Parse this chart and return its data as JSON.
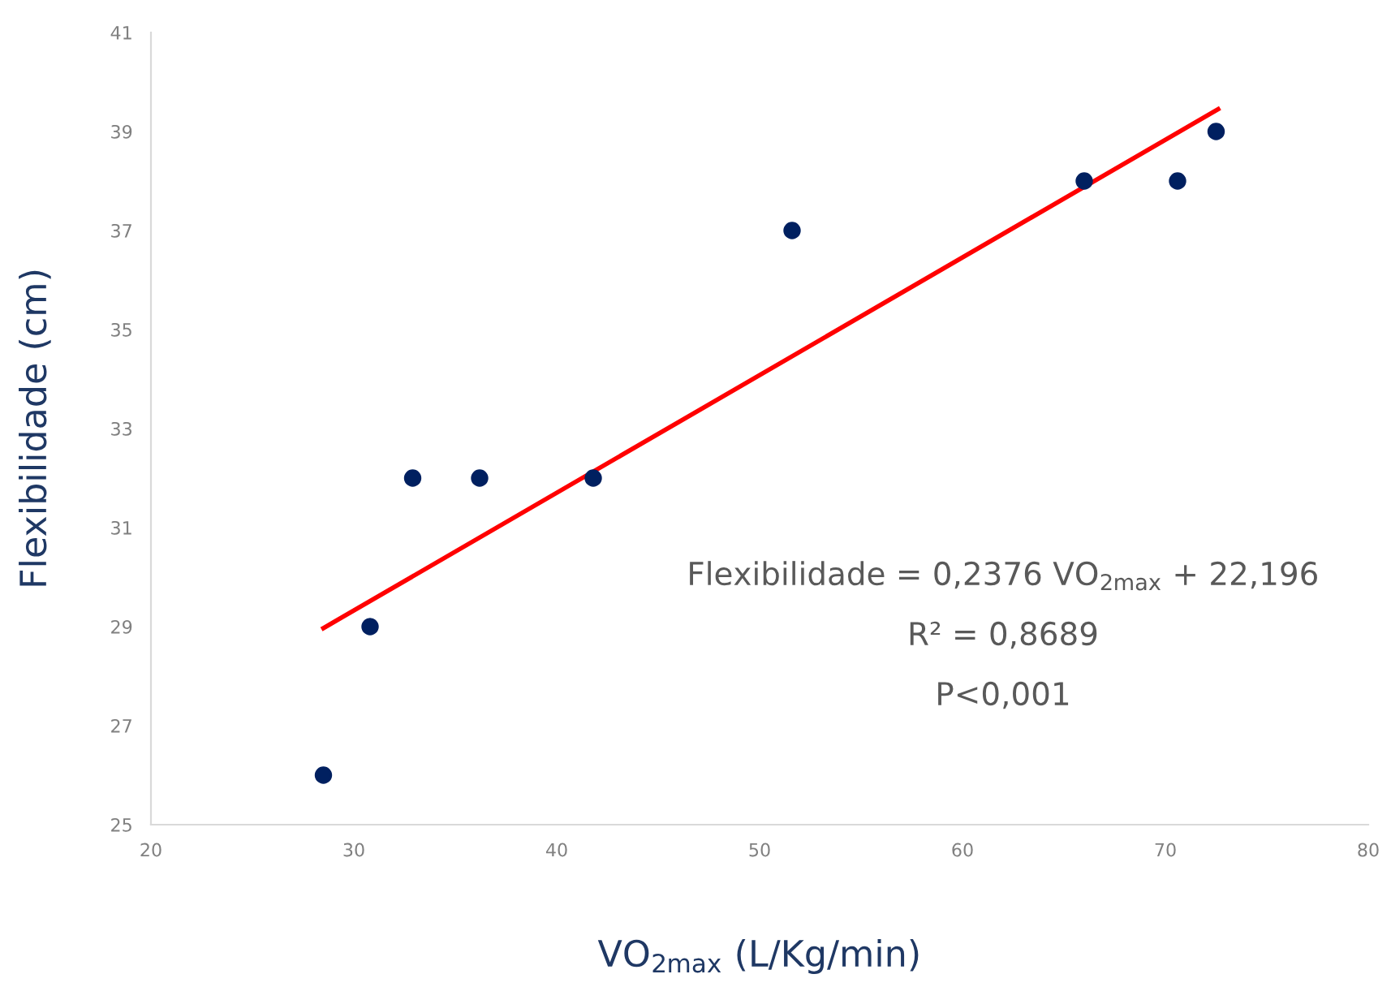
{
  "chart_data": {
    "type": "scatter",
    "xlabel": "VO$_{2max}$ (L/Kg/min)",
    "ylabel": "Flexibilidade (cm)",
    "xlim": [
      20,
      80
    ],
    "xticks": [
      20,
      30,
      40,
      50,
      60,
      70,
      80
    ],
    "ylim": [
      25,
      41
    ],
    "yticks": [
      25,
      27,
      29,
      31,
      33,
      35,
      37,
      39,
      41
    ],
    "grid": false,
    "series": [
      {
        "marker": "circle",
        "color": "#002060",
        "x": [
          28.5,
          30.8,
          32.9,
          36.2,
          41.8,
          51.6,
          66.0,
          70.6,
          72.5
        ],
        "values": [
          26,
          29,
          32,
          32,
          32,
          37,
          38,
          38,
          39
        ]
      },
      {
        "type": "line",
        "color": "#ff0000",
        "line_style": "solid",
        "x": [
          28.5,
          72.6
        ],
        "values": [
          28.97,
          39.45
        ]
      }
    ],
    "annotations": [
      "Flexibilidade = 0,2376 VO$_{2max}$ + 22,196",
      "R² = 0,8689",
      "P<0,001"
    ]
  }
}
